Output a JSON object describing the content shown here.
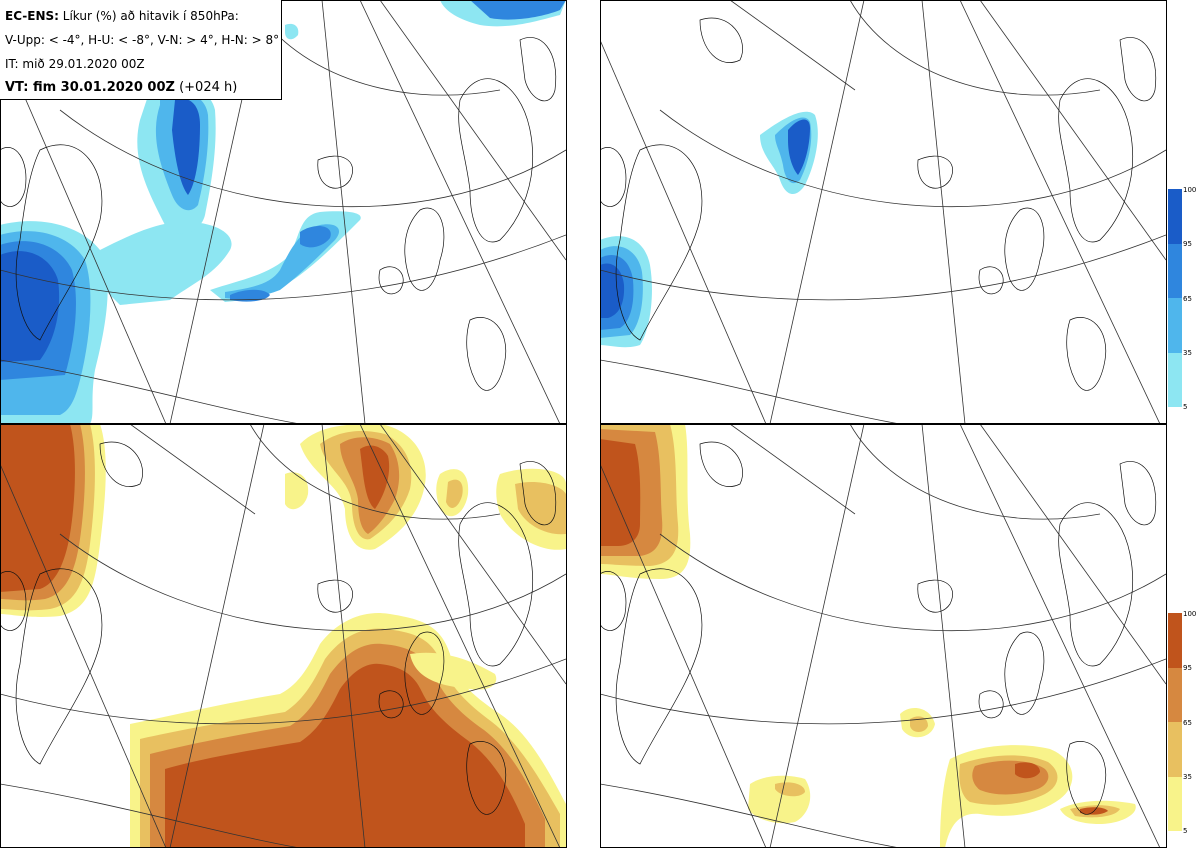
{
  "header": {
    "model": "EC-ENS:",
    "description": "Líkur (%) að hitavik í 850hPa:",
    "thresholds": "V-Upp: < -4°, H-U: < -8°, V-N: > 4°, H-N: > 8°",
    "initial_time": "IT: mið 29.01.2020 00Z",
    "valid_label": "VT: fim 30.01.2020 00Z",
    "lead": "(+024 h)"
  },
  "colorbars": {
    "cold": {
      "ticks": [
        "100",
        "95",
        "65",
        "35",
        "5"
      ],
      "colors": [
        "#1a5cc8",
        "#2f86de",
        "#4fb6ec",
        "#8de6f2"
      ]
    },
    "warm": {
      "ticks": [
        "100",
        "95",
        "65",
        "35",
        "5"
      ],
      "colors": [
        "#c0541c",
        "#d68840",
        "#e8c060",
        "#f8f38a"
      ]
    }
  },
  "panels": [
    {
      "id": "V-Upp",
      "kind": "cold"
    },
    {
      "id": "H-U",
      "kind": "cold"
    },
    {
      "id": "V-N",
      "kind": "warm"
    },
    {
      "id": "H-N",
      "kind": "warm"
    }
  ]
}
